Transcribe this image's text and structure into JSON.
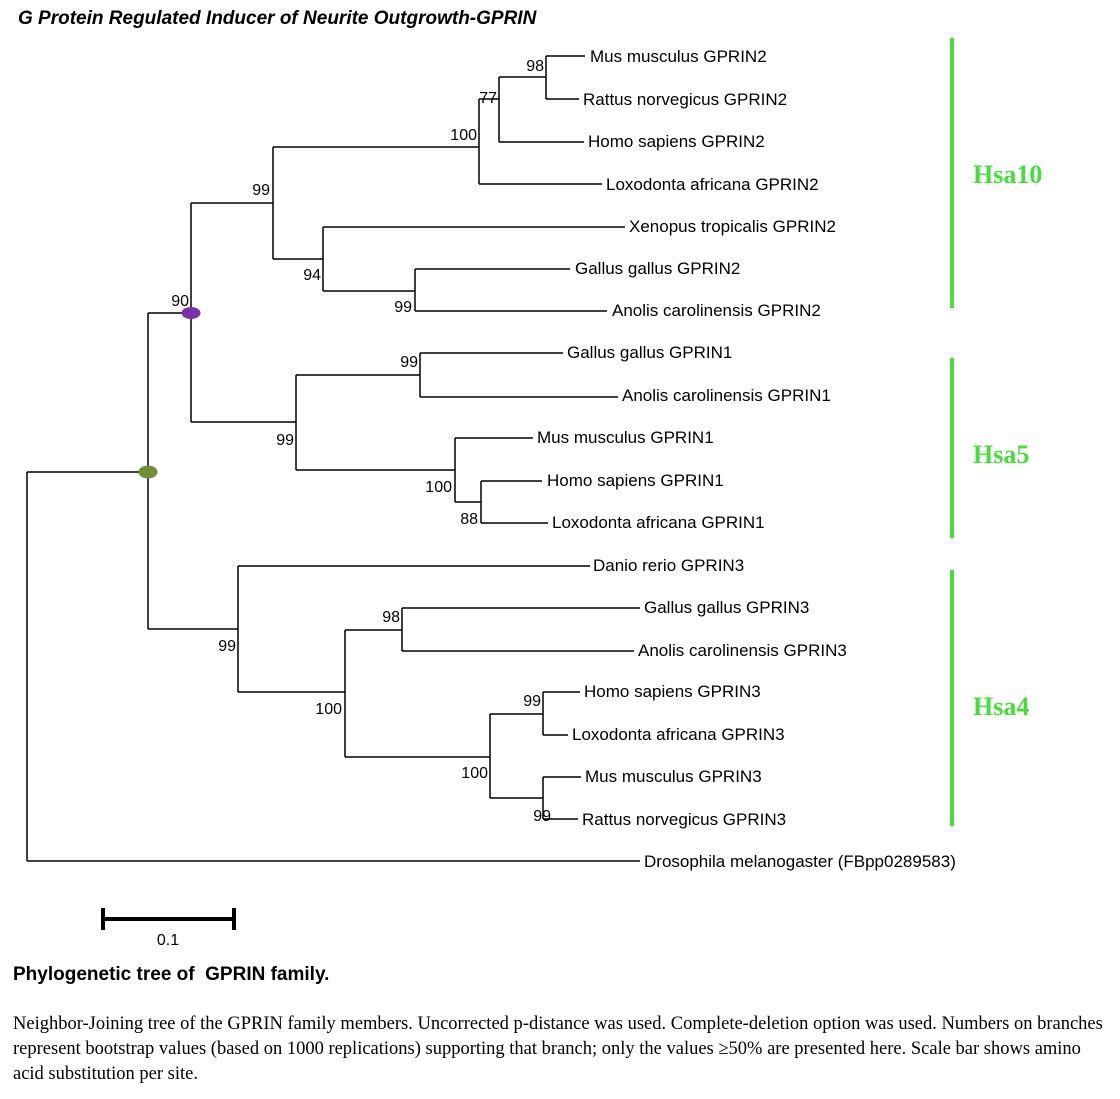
{
  "title": "G Protein Regulated Inducer of Neurite Outgrowth-GPRIN",
  "leaves": [
    "Mus musculus GPRIN2",
    "Rattus norvegicus GPRIN2",
    "Homo sapiens GPRIN2",
    "Loxodonta africana GPRIN2",
    "Xenopus tropicalis GPRIN2",
    "Gallus gallus GPRIN2",
    "Anolis carolinensis GPRIN2",
    "Gallus gallus GPRIN1",
    "Anolis carolinensis GPRIN1",
    "Mus musculus GPRIN1",
    "Homo sapiens GPRIN1",
    "Loxodonta africana GPRIN1",
    "Danio rerio GPRIN3",
    "Gallus gallus GPRIN3",
    "Anolis carolinensis GPRIN3",
    "Homo sapiens GPRIN3",
    "Loxodonta africana GPRIN3",
    "Mus musculus GPRIN3",
    "Rattus norvegicus GPRIN3",
    "Drosophila melanogaster (FBpp0289583)"
  ],
  "bootstrap": [
    "98",
    "77",
    "100",
    "99",
    "94",
    "99",
    "90",
    "99",
    "99",
    "100",
    "88",
    "98",
    "99",
    "100",
    "99",
    "99",
    "100"
  ],
  "clades": [
    {
      "label": "Hsa10",
      "color": "#44e03a"
    },
    {
      "label": "Hsa5",
      "color": "#44e03a"
    },
    {
      "label": "Hsa4",
      "color": "#44e03a"
    }
  ],
  "markers": [
    {
      "name": "node-marker-purple",
      "color": "#7b2fa8"
    },
    {
      "name": "node-marker-olive",
      "color": "#6f8f3a"
    }
  ],
  "scale_bar": {
    "label": "0.1"
  },
  "caption": {
    "title": "Phylogenetic tree of  GPRIN family.",
    "text": "Neighbor-Joining tree of the GPRIN family members. Uncorrected p-distance was used. Complete-deletion option was used. Numbers on branches represent bootstrap values (based on 1000 replications) supporting that branch; only the values ≥50% are presented here. Scale bar shows amino acid substitution per site."
  }
}
